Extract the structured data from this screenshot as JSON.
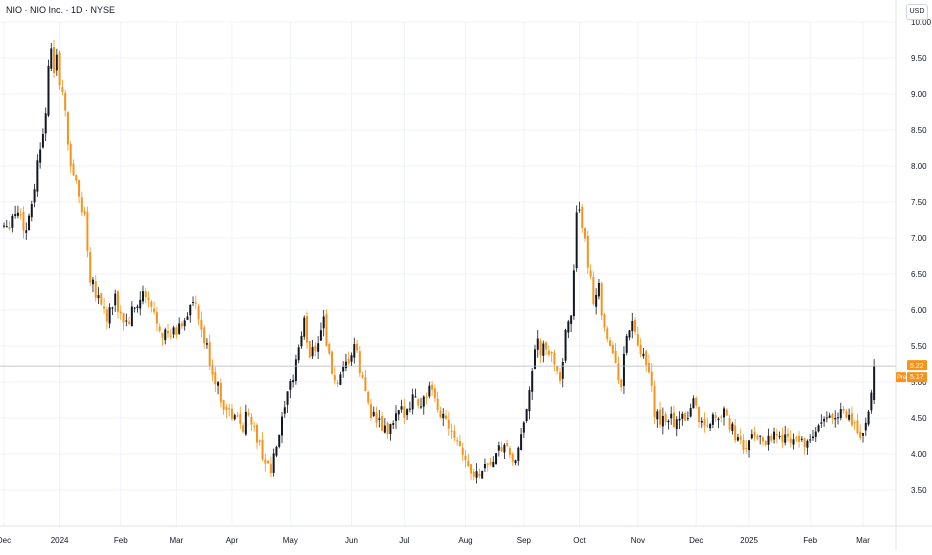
{
  "header": {
    "title": "NIO · NIO Inc. · 1D · NYSE",
    "currency": "USD"
  },
  "price_axis": {
    "ticks": [
      "10.00",
      "9.50",
      "9.00",
      "8.50",
      "8.00",
      "7.50",
      "7.00",
      "6.50",
      "6.00",
      "5.50",
      "5.00",
      "4.50",
      "4.00",
      "3.50"
    ],
    "last_price_label": "5.22",
    "pre_tag": "Pre",
    "pre_price_label": "5.17"
  },
  "time_axis": {
    "labels": [
      "Dec",
      "2024",
      "Feb",
      "Mar",
      "Apr",
      "May",
      "Jun",
      "Jul",
      "Aug",
      "Sep",
      "Oct",
      "Nov",
      "Dec",
      "2025",
      "Feb",
      "Mar"
    ]
  },
  "colors": {
    "up": "#131722",
    "down": "#f7931a",
    "last_price_line": "#b2b5be",
    "pre_tag_bg": "#f7931a",
    "last_tag_bg": "#f7931a",
    "grid": "#f0f3fa"
  },
  "chart_data": {
    "type": "candlestick",
    "title": "NIO · NIO Inc. · 1D · NYSE",
    "currency": "USD",
    "ylim": [
      3.25,
      10.0
    ],
    "xlim_index": [
      0,
      325
    ],
    "grid": true,
    "last_price": 5.22,
    "premarket_price": 5.17,
    "month_labels": [
      {
        "label": "Dec",
        "i": 0
      },
      {
        "label": "2024",
        "i": 20
      },
      {
        "label": "Feb",
        "i": 42
      },
      {
        "label": "Mar",
        "i": 62
      },
      {
        "label": "Apr",
        "i": 82
      },
      {
        "label": "May",
        "i": 103
      },
      {
        "label": "Jun",
        "i": 125
      },
      {
        "label": "Jul",
        "i": 144
      },
      {
        "label": "Aug",
        "i": 166
      },
      {
        "label": "Sep",
        "i": 187
      },
      {
        "label": "Oct",
        "i": 207
      },
      {
        "label": "Nov",
        "i": 228
      },
      {
        "label": "Dec",
        "i": 249
      },
      {
        "label": "2025",
        "i": 268
      },
      {
        "label": "Feb",
        "i": 290
      },
      {
        "label": "Mar",
        "i": 309
      }
    ],
    "path_points": [
      [
        0,
        7.2
      ],
      [
        5,
        7.4
      ],
      [
        8,
        7.1
      ],
      [
        12,
        8.0
      ],
      [
        14,
        8.6
      ],
      [
        17,
        9.5
      ],
      [
        20,
        9.3
      ],
      [
        23,
        8.3
      ],
      [
        26,
        7.7
      ],
      [
        29,
        7.3
      ],
      [
        31,
        6.5
      ],
      [
        34,
        6.2
      ],
      [
        37,
        5.9
      ],
      [
        40,
        6.1
      ],
      [
        44,
        5.8
      ],
      [
        47,
        6.0
      ],
      [
        50,
        6.2
      ],
      [
        53,
        6.0
      ],
      [
        56,
        5.8
      ],
      [
        59,
        5.6
      ],
      [
        62,
        5.7
      ],
      [
        65,
        5.9
      ],
      [
        68,
        6.1
      ],
      [
        71,
        5.7
      ],
      [
        74,
        5.3
      ],
      [
        77,
        4.9
      ],
      [
        80,
        4.6
      ],
      [
        83,
        4.5
      ],
      [
        86,
        4.4
      ],
      [
        88,
        4.6
      ],
      [
        91,
        4.2
      ],
      [
        94,
        3.9
      ],
      [
        96,
        3.75
      ],
      [
        98,
        4.1
      ],
      [
        101,
        4.6
      ],
      [
        104,
        5.1
      ],
      [
        106,
        5.5
      ],
      [
        108,
        5.8
      ],
      [
        110,
        5.4
      ],
      [
        113,
        5.6
      ],
      [
        115,
        5.9
      ],
      [
        117,
        5.3
      ],
      [
        120,
        4.9
      ],
      [
        123,
        5.2
      ],
      [
        126,
        5.5
      ],
      [
        129,
        5.0
      ],
      [
        132,
        4.6
      ],
      [
        135,
        4.4
      ],
      [
        138,
        4.3
      ],
      [
        141,
        4.5
      ],
      [
        144,
        4.6
      ],
      [
        147,
        4.8
      ],
      [
        150,
        4.7
      ],
      [
        153,
        4.9
      ],
      [
        156,
        4.6
      ],
      [
        159,
        4.5
      ],
      [
        162,
        4.3
      ],
      [
        165,
        4.05
      ],
      [
        167,
        3.8
      ],
      [
        170,
        3.7
      ],
      [
        173,
        3.85
      ],
      [
        176,
        3.9
      ],
      [
        179,
        4.1
      ],
      [
        182,
        4.0
      ],
      [
        184,
        3.85
      ],
      [
        186,
        4.2
      ],
      [
        188,
        4.7
      ],
      [
        190,
        5.2
      ],
      [
        192,
        5.5
      ],
      [
        195,
        5.4
      ],
      [
        198,
        5.3
      ],
      [
        200,
        5.1
      ],
      [
        202,
        5.6
      ],
      [
        204,
        6.0
      ],
      [
        205,
        6.6
      ],
      [
        206,
        7.5
      ],
      [
        208,
        7.0
      ],
      [
        210,
        6.7
      ],
      [
        212,
        6.2
      ],
      [
        214,
        6.3
      ],
      [
        216,
        5.8
      ],
      [
        218,
        5.5
      ],
      [
        220,
        5.2
      ],
      [
        222,
        5.0
      ],
      [
        224,
        5.6
      ],
      [
        226,
        5.9
      ],
      [
        228,
        5.4
      ],
      [
        230,
        5.3
      ],
      [
        232,
        5.1
      ],
      [
        234,
        4.6
      ],
      [
        236,
        4.4
      ],
      [
        238,
        4.5
      ],
      [
        240,
        4.5
      ],
      [
        242,
        4.4
      ],
      [
        244,
        4.6
      ],
      [
        246,
        4.5
      ],
      [
        248,
        4.8
      ],
      [
        250,
        4.5
      ],
      [
        252,
        4.4
      ],
      [
        255,
        4.5
      ],
      [
        258,
        4.6
      ],
      [
        261,
        4.4
      ],
      [
        264,
        4.2
      ],
      [
        266,
        4.05
      ],
      [
        268,
        4.2
      ],
      [
        271,
        4.25
      ],
      [
        274,
        4.2
      ],
      [
        277,
        4.3
      ],
      [
        280,
        4.2
      ],
      [
        283,
        4.25
      ],
      [
        286,
        4.2
      ],
      [
        289,
        4.1
      ],
      [
        291,
        4.25
      ],
      [
        294,
        4.4
      ],
      [
        297,
        4.5
      ],
      [
        300,
        4.6
      ],
      [
        303,
        4.5
      ],
      [
        306,
        4.4
      ],
      [
        308,
        4.25
      ],
      [
        310,
        4.4
      ],
      [
        312,
        4.75
      ],
      [
        313,
        5.22
      ]
    ]
  }
}
